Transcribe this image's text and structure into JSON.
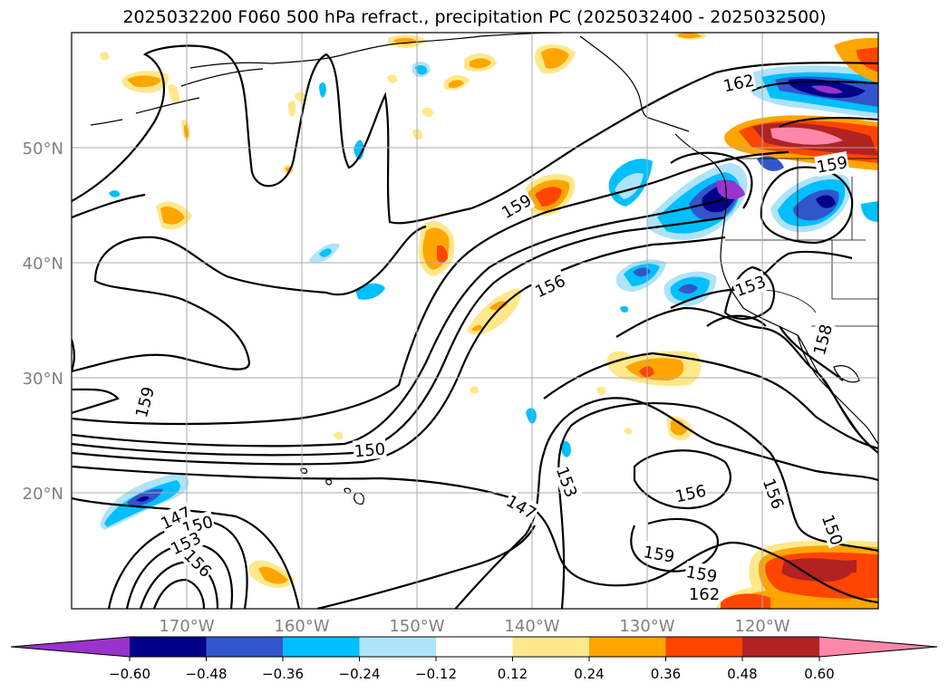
{
  "title": "2025032200 F060 500 hPa refract., precipitation PC (2025032400 - 2025032500)",
  "lat_labels": [
    "50°N",
    "40°N",
    "30°N",
    "20°N"
  ],
  "lon_labels": [
    "170°W",
    "160°W",
    "150°W",
    "140°W",
    "130°W",
    "120°W"
  ],
  "contour_labels": [
    "162",
    "159",
    "159",
    "156",
    "153",
    "159",
    "150",
    "147",
    "150",
    "153",
    "156",
    "147",
    "153",
    "156",
    "156",
    "159",
    "159",
    "162",
    "150",
    "158"
  ],
  "colorbar": {
    "ticks": [
      "−0.60",
      "−0.48",
      "−0.36",
      "−0.24",
      "−0.12",
      "0.12",
      "0.24",
      "0.36",
      "0.48",
      "0.60"
    ],
    "colors": [
      "#9933cc",
      "#00008b",
      "#3355cc",
      "#00bfff",
      "#aee3fa",
      "#ffffff",
      "#ffe88a",
      "#ffa500",
      "#ff4500",
      "#b22222",
      "#ff88aa"
    ]
  },
  "shading_colors": {
    "violet": "#9933cc",
    "navy": "#00008b",
    "royal": "#3355cc",
    "sky": "#00bfff",
    "pale_blue": "#aee3fa",
    "pale_yellow": "#ffe88a",
    "orange": "#ffa500",
    "red_orange": "#ff4500",
    "firebrick": "#b22222",
    "pink": "#ff88aa"
  }
}
